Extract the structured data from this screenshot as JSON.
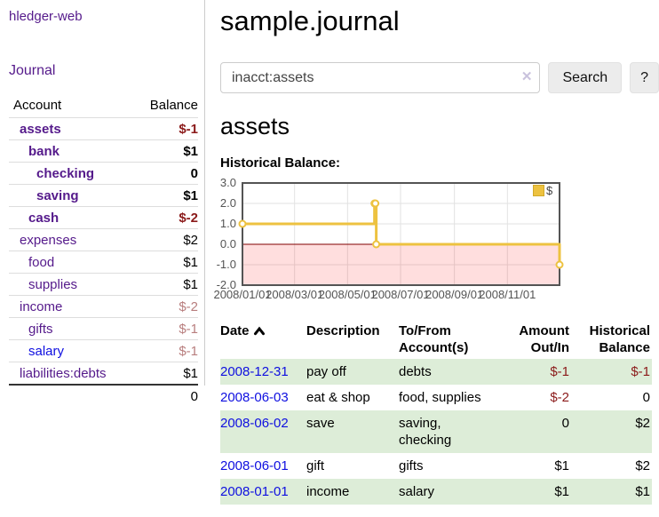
{
  "app": {
    "brand": "hledger-web",
    "nav_journal": "Journal"
  },
  "sidebar": {
    "col_account": "Account",
    "col_balance": "Balance",
    "total": "0",
    "accounts": [
      {
        "name": "assets",
        "balance": "$-1",
        "level": 0,
        "bold": true,
        "link_color": "purple",
        "amount_style": "neg-strong"
      },
      {
        "name": "bank",
        "balance": "$1",
        "level": 1,
        "bold": true,
        "link_color": "purple",
        "amount_style": "pos"
      },
      {
        "name": "checking",
        "balance": "0",
        "level": 2,
        "bold": true,
        "link_color": "purple",
        "amount_style": "pos"
      },
      {
        "name": "saving",
        "balance": "$1",
        "level": 2,
        "bold": true,
        "link_color": "purple",
        "amount_style": "pos"
      },
      {
        "name": "cash",
        "balance": "$-2",
        "level": 1,
        "bold": true,
        "link_color": "purple",
        "amount_style": "neg-strong"
      },
      {
        "name": "expenses",
        "balance": "$2",
        "level": 0,
        "bold": false,
        "link_color": "purple",
        "amount_style": "pos"
      },
      {
        "name": "food",
        "balance": "$1",
        "level": 1,
        "bold": false,
        "link_color": "purple",
        "amount_style": "pos"
      },
      {
        "name": "supplies",
        "balance": "$1",
        "level": 1,
        "bold": false,
        "link_color": "purple",
        "amount_style": "pos"
      },
      {
        "name": "income",
        "balance": "$-2",
        "level": 0,
        "bold": false,
        "link_color": "purple",
        "amount_style": "neg-weak"
      },
      {
        "name": "gifts",
        "balance": "$-1",
        "level": 1,
        "bold": false,
        "link_color": "purple",
        "amount_style": "neg-weak"
      },
      {
        "name": "salary",
        "balance": "$-1",
        "level": 1,
        "bold": false,
        "link_color": "blue",
        "amount_style": "neg-weak"
      },
      {
        "name": "liabilities:debts",
        "balance": "$1",
        "level": 0,
        "bold": false,
        "link_color": "purple",
        "amount_style": "pos"
      }
    ]
  },
  "header": {
    "title": "sample.journal"
  },
  "search": {
    "value": "inacct:assets",
    "clear_icon": "✕",
    "button_label": "Search",
    "help_label": "?"
  },
  "account": {
    "heading": "assets",
    "chart_label": "Historical Balance:"
  },
  "chart_data": {
    "type": "line",
    "step": true,
    "title": "Historical Balance:",
    "series": [
      {
        "name": "$",
        "color": "#EDC240",
        "points": [
          [
            "2008-01-01",
            1
          ],
          [
            "2008-06-01",
            2
          ],
          [
            "2008-06-02",
            2
          ],
          [
            "2008-06-03",
            0
          ],
          [
            "2008-12-31",
            -1
          ]
        ]
      }
    ],
    "x_start": "2008-01-01",
    "x_end": "2008-12-31",
    "x_ticks": [
      "2008/01/01",
      "2008/03/01",
      "2008/05/01",
      "2008/07/01",
      "2008/09/01",
      "2008/11/01"
    ],
    "y_ticks": [
      "3.0",
      "2.0",
      "1.0",
      "0.0",
      "-1.0",
      "-2.0"
    ],
    "ylim": [
      -2,
      3
    ],
    "grid": true,
    "legend": {
      "label": "$",
      "position": "top-right"
    },
    "zero_line_color": "#800000",
    "negative_region_color": "rgba(255,0,0,0.13)",
    "grid_color": "#e2e2e2",
    "border_color": "#545454",
    "marker_fill": "#ffffff"
  },
  "register": {
    "columns": [
      "Date",
      "Description",
      "To/From Account(s)",
      "Amount Out/In",
      "Historical Balance"
    ],
    "rows": [
      {
        "date": "2008-12-31",
        "description": "pay off",
        "accounts": "debts",
        "amount": "$-1",
        "balance": "$-1"
      },
      {
        "date": "2008-06-03",
        "description": "eat & shop",
        "accounts": "food, supplies",
        "amount": "$-2",
        "balance": "0"
      },
      {
        "date": "2008-06-02",
        "description": "save",
        "accounts": "saving, checking",
        "amount": "0",
        "balance": "$2"
      },
      {
        "date": "2008-06-01",
        "description": "gift",
        "accounts": "gifts",
        "amount": "$1",
        "balance": "$2"
      },
      {
        "date": "2008-01-01",
        "description": "income",
        "accounts": "salary",
        "amount": "$1",
        "balance": "$1"
      }
    ]
  }
}
